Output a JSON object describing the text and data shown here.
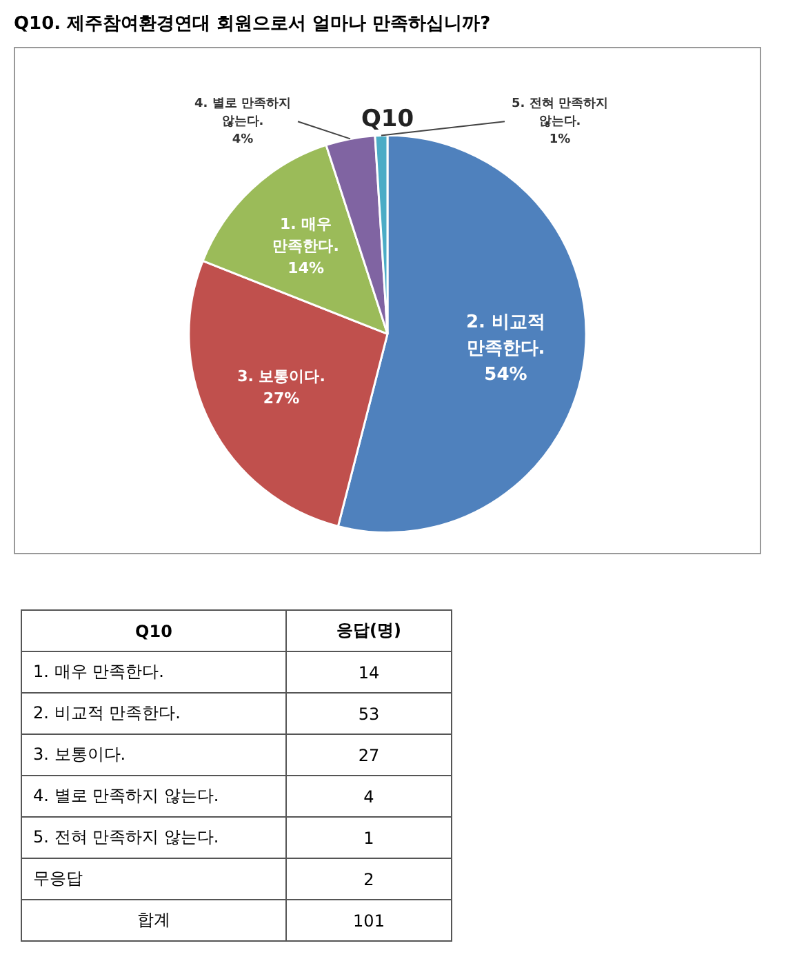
{
  "chart_data": [
    {
      "type": "pie",
      "title": "Q10. 제주참여환경연대 회원으로서 얼마나 만족하십니까?",
      "subtitle": "Q10",
      "categories": [
        "2. 비교적 만족한다.",
        "3. 보통이다.",
        "1. 매우 만족한다.",
        "4. 별로 만족하지 않는다.",
        "5. 전혀 만족하지 않는다."
      ],
      "values": [
        54,
        27,
        14,
        4,
        1
      ],
      "value_labels": [
        "54%",
        "27%",
        "14%",
        "4%",
        "1%"
      ],
      "colors": [
        "#4f81bd",
        "#c0504d",
        "#9bbb59",
        "#8064a2",
        "#4bacc6"
      ],
      "legend": false
    },
    {
      "type": "other",
      "xlabel": "Q10",
      "ylabel": "응답(명)",
      "categories": [
        "1. 매우 만족한다.",
        "2. 비교적 만족한다.",
        "3. 보통이다.",
        "4. 별로 만족하지 않는다.",
        "5. 전혀 만족하지 않는다.",
        "무응답",
        "합계"
      ],
      "values": [
        14,
        53,
        27,
        4,
        1,
        2,
        101
      ],
      "data_labels": true
    }
  ]
}
